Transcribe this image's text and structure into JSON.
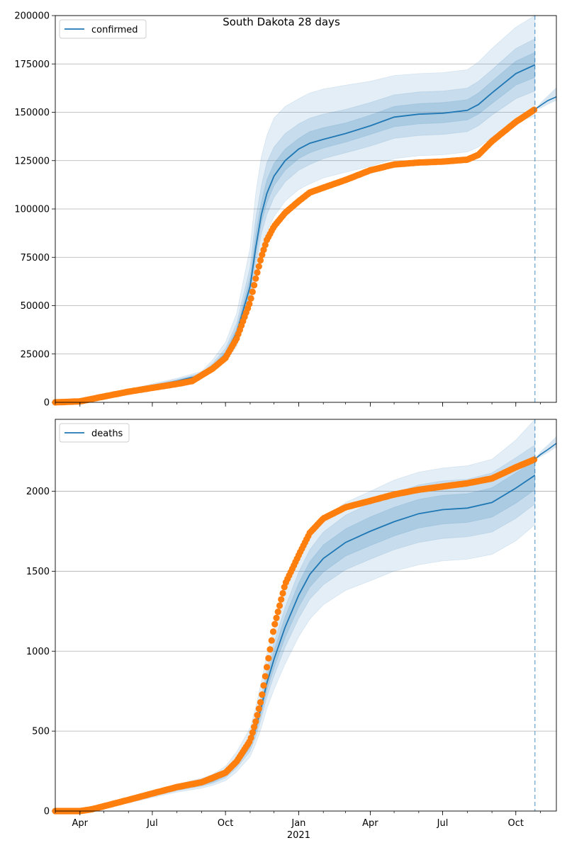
{
  "chart_data": {
    "title": "South Dakota 28 days",
    "type": "line",
    "x_range": [
      "2020-03-01",
      "2021-11-21"
    ],
    "x_ticks_major": [
      {
        "date": "2020-04-01",
        "label": "Apr"
      },
      {
        "date": "2020-07-01",
        "label": "Jul"
      },
      {
        "date": "2020-10-01",
        "label": "Oct"
      },
      {
        "date": "2021-01-01",
        "label": "Jan"
      },
      {
        "date": "2021-04-01",
        "label": "Apr"
      },
      {
        "date": "2021-07-01",
        "label": "Jul"
      },
      {
        "date": "2021-10-01",
        "label": "Oct"
      }
    ],
    "x_year_label": {
      "date": "2021-01-01",
      "label": "2021"
    },
    "forecast_start": "2021-10-25",
    "colors": {
      "model": "#1f77b4",
      "observed": "#ff7f0e",
      "band": "#1f77b4"
    },
    "panels": [
      {
        "key": "confirmed",
        "legend": "confirmed",
        "legend_position": "upper-left",
        "ylim": [
          0,
          200000
        ],
        "yticks": [
          0,
          25000,
          50000,
          75000,
          100000,
          125000,
          150000,
          175000,
          200000
        ],
        "grid": true,
        "model": {
          "dates": [
            "2020-03-01",
            "2020-04-01",
            "2020-05-01",
            "2020-06-01",
            "2020-07-01",
            "2020-08-01",
            "2020-09-01",
            "2020-09-15",
            "2020-10-01",
            "2020-10-15",
            "2020-11-01",
            "2020-11-08",
            "2020-11-15",
            "2020-11-22",
            "2020-12-01",
            "2020-12-15",
            "2021-01-01",
            "2021-01-15",
            "2021-02-01",
            "2021-03-01",
            "2021-04-01",
            "2021-05-01",
            "2021-06-01",
            "2021-07-01",
            "2021-08-01",
            "2021-08-15",
            "2021-09-01",
            "2021-10-01",
            "2021-10-25"
          ],
          "values": [
            0,
            800,
            3500,
            5800,
            8500,
            11000,
            14000,
            18500,
            25000,
            36000,
            60000,
            80000,
            97000,
            108000,
            117000,
            125000,
            131000,
            134000,
            136000,
            139000,
            143000,
            147500,
            149000,
            149500,
            151000,
            154000,
            160000,
            170000,
            174500
          ]
        },
        "bands": [
          {
            "opacity": 0.12,
            "lower": [
              0,
              700,
              3200,
              5300,
              7800,
              10000,
              12500,
              16000,
              21000,
              29000,
              48000,
              64000,
              79000,
              88000,
              96000,
              104000,
              110000,
              113000,
              116000,
              119000,
              122000,
              126000,
              127500,
              128000,
              129500,
              132000,
              137000,
              145000,
              148000
            ],
            "upper": [
              0,
              950,
              4000,
              6600,
              9600,
              12500,
              16000,
              22000,
              31000,
              46000,
              80000,
              108000,
              127000,
              138000,
              147000,
              153000,
              157000,
              160000,
              162000,
              164000,
              166000,
              169000,
              170000,
              170500,
              172000,
              176000,
              183000,
              194000,
              200000
            ]
          },
          {
            "opacity": 0.15,
            "lower": [
              0,
              740,
              3300,
              5500,
              8100,
              10400,
              13200,
              17200,
              23000,
              32000,
              53000,
              71000,
              87000,
              97000,
              106000,
              114000,
              120000,
              123000,
              126000,
              129000,
              132500,
              136500,
              138000,
              138500,
              140000,
              143000,
              148500,
              157000,
              161000
            ],
            "upper": [
              0,
              880,
              3800,
              6200,
              9100,
              11900,
              15200,
              20300,
              28000,
              41000,
              70000,
              95000,
              112000,
              124000,
              132000,
              139000,
              144000,
              147000,
              149000,
              151500,
              155000,
              159000,
              160500,
              161000,
              162500,
              166000,
              172000,
              183000,
              188000
            ]
          },
          {
            "opacity": 0.17,
            "lower": [
              0,
              770,
              3400,
              5650,
              8300,
              10700,
              13600,
              17900,
              24000,
              34000,
              56500,
              76000,
              92500,
              103000,
              112000,
              120000,
              126000,
              129000,
              131500,
              134500,
              138500,
              142500,
              144000,
              144500,
              146000,
              149000,
              154500,
              164000,
              168000
            ],
            "upper": [
              0,
              830,
              3650,
              6000,
              8800,
              11400,
              14600,
              19300,
              26200,
              38300,
              64500,
              87000,
              103500,
              115000,
              123500,
              131000,
              136500,
              140000,
              142000,
              144500,
              148500,
              153000,
              154500,
              155000,
              156500,
              160000,
              166000,
              176500,
              181000
            ]
          }
        ],
        "observed": {
          "dates": [
            "2020-03-01",
            "2020-04-01",
            "2020-05-01",
            "2020-06-01",
            "2020-07-01",
            "2020-08-01",
            "2020-08-20",
            "2020-09-01",
            "2020-09-15",
            "2020-10-01",
            "2020-10-15",
            "2020-11-01",
            "2020-11-08",
            "2020-11-15",
            "2020-11-22",
            "2020-12-01",
            "2020-12-15",
            "2021-01-01",
            "2021-01-15",
            "2021-02-01",
            "2021-03-01",
            "2021-04-01",
            "2021-05-01",
            "2021-06-01",
            "2021-07-01",
            "2021-08-01",
            "2021-08-15",
            "2021-09-01",
            "2021-10-01",
            "2021-10-25"
          ],
          "values": [
            0,
            500,
            3000,
            5500,
            7500,
            9500,
            11000,
            14000,
            17500,
            23000,
            33000,
            52000,
            64000,
            75000,
            84000,
            91000,
            98000,
            104000,
            108500,
            111000,
            115000,
            120000,
            123000,
            124000,
            124500,
            125500,
            128000,
            135000,
            145000,
            151500
          ]
        },
        "forecast": {
          "dates": [
            "2021-10-25",
            "2021-11-01",
            "2021-11-10",
            "2021-11-21"
          ],
          "values": [
            151500,
            153500,
            156000,
            158000
          ],
          "upper": [
            151500,
            155000,
            158500,
            163000
          ],
          "lower": [
            151500,
            152000,
            154000,
            156000
          ]
        }
      },
      {
        "key": "deaths",
        "legend": "deaths",
        "legend_position": "upper-left",
        "ylim": [
          0,
          2450
        ],
        "yticks": [
          0,
          500,
          1000,
          1500,
          2000
        ],
        "grid": true,
        "model": {
          "dates": [
            "2020-03-01",
            "2020-04-01",
            "2020-05-01",
            "2020-06-01",
            "2020-07-01",
            "2020-08-01",
            "2020-09-01",
            "2020-09-15",
            "2020-10-01",
            "2020-10-15",
            "2020-11-01",
            "2020-11-08",
            "2020-11-15",
            "2020-11-22",
            "2020-12-01",
            "2020-12-15",
            "2021-01-01",
            "2021-01-15",
            "2021-02-01",
            "2021-03-01",
            "2021-04-01",
            "2021-05-01",
            "2021-06-01",
            "2021-07-01",
            "2021-08-01",
            "2021-09-01",
            "2021-10-01",
            "2021-10-25"
          ],
          "values": [
            0,
            0,
            30,
            60,
            100,
            140,
            170,
            190,
            230,
            300,
            420,
            520,
            650,
            800,
            950,
            1150,
            1350,
            1480,
            1580,
            1680,
            1750,
            1810,
            1860,
            1885,
            1895,
            1930,
            2020,
            2100
          ]
        },
        "bands": [
          {
            "opacity": 0.12,
            "lower": [
              0,
              0,
              25,
              50,
              85,
              118,
              143,
              160,
              190,
              245,
              340,
              420,
              520,
              640,
              760,
              920,
              1090,
              1200,
              1290,
              1380,
              1440,
              1500,
              1540,
              1565,
              1575,
              1605,
              1690,
              1790
            ],
            "upper": [
              0,
              0,
              36,
              72,
              120,
              168,
              205,
              230,
              280,
              370,
              520,
              650,
              810,
              980,
              1140,
              1380,
              1600,
              1730,
              1830,
              1930,
              2000,
              2070,
              2120,
              2145,
              2160,
              2200,
              2320,
              2450
            ]
          },
          {
            "opacity": 0.15,
            "lower": [
              0,
              0,
              27,
              54,
              91,
              127,
              155,
              173,
              207,
              268,
              374,
              463,
              578,
              712,
              845,
              1025,
              1205,
              1325,
              1415,
              1510,
              1575,
              1635,
              1680,
              1705,
              1715,
              1745,
              1830,
              1920
            ],
            "upper": [
              0,
              0,
              33,
              66,
              109,
              153,
              186,
              208,
              253,
              333,
              466,
              580,
              725,
              890,
              1055,
              1275,
              1495,
              1635,
              1745,
              1850,
              1925,
              1990,
              2040,
              2065,
              2075,
              2115,
              2210,
              2290
            ]
          },
          {
            "opacity": 0.17,
            "lower": [
              0,
              0,
              28,
              56,
              95,
              133,
              162,
              181,
              218,
              283,
              396,
              490,
              612,
              754,
              895,
              1085,
              1275,
              1400,
              1495,
              1595,
              1660,
              1720,
              1770,
              1795,
              1805,
              1838,
              1925,
              2010
            ],
            "upper": [
              0,
              0,
              32,
              64,
              105,
              147,
              178,
              199,
              242,
              317,
              444,
              550,
              688,
              846,
              1005,
              1215,
              1425,
              1560,
              1665,
              1765,
              1840,
              1900,
              1950,
              1975,
              1985,
              2022,
              2115,
              2190
            ]
          }
        ],
        "observed": {
          "dates": [
            "2020-03-01",
            "2020-04-01",
            "2020-04-15",
            "2020-05-01",
            "2020-06-01",
            "2020-07-01",
            "2020-08-01",
            "2020-09-01",
            "2020-10-01",
            "2020-10-15",
            "2020-11-01",
            "2020-11-08",
            "2020-11-15",
            "2020-11-22",
            "2020-12-01",
            "2020-12-15",
            "2021-01-01",
            "2021-01-15",
            "2021-02-01",
            "2021-03-01",
            "2021-04-01",
            "2021-05-01",
            "2021-06-01",
            "2021-07-01",
            "2021-08-01",
            "2021-09-01",
            "2021-10-01",
            "2021-10-25"
          ],
          "values": [
            0,
            0,
            10,
            30,
            70,
            110,
            150,
            180,
            240,
            310,
            440,
            560,
            700,
            900,
            1150,
            1420,
            1600,
            1740,
            1830,
            1900,
            1940,
            1980,
            2010,
            2030,
            2050,
            2080,
            2150,
            2200
          ]
        },
        "forecast": {
          "dates": [
            "2021-10-25",
            "2021-11-01",
            "2021-11-10",
            "2021-11-21"
          ],
          "values": [
            2200,
            2230,
            2260,
            2300
          ],
          "upper": [
            2200,
            2250,
            2290,
            2345
          ],
          "lower": [
            2200,
            2215,
            2240,
            2275
          ]
        }
      }
    ]
  }
}
